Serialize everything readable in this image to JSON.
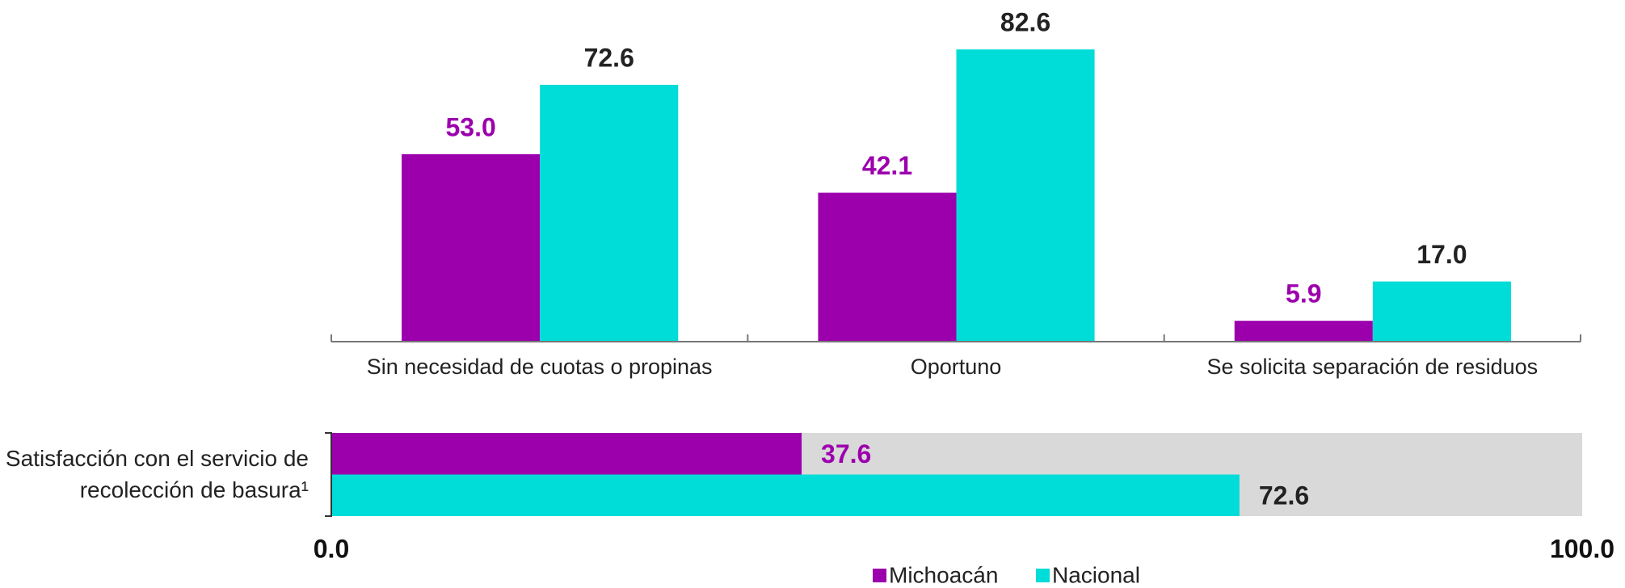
{
  "chart_data": [
    {
      "type": "bar",
      "categories": [
        "Sin necesidad de cuotas o propinas",
        "Oportuno",
        "Se solicita separación de residuos"
      ],
      "series": [
        {
          "name": "Michoacán",
          "color": "#9c00ad",
          "values": [
            53.0,
            42.1,
            5.9
          ],
          "value_labels": [
            "53.0",
            "42.1",
            "5.9"
          ]
        },
        {
          "name": "Nacional",
          "color": "#00dcd8",
          "values": [
            72.6,
            82.6,
            17.0
          ],
          "value_labels": [
            "72.6",
            "82.6",
            "17.0"
          ]
        }
      ],
      "ylim": [
        0,
        100
      ]
    },
    {
      "type": "hbar",
      "categories": [
        "Satisfacción con el servicio de recolección de basura¹"
      ],
      "series": [
        {
          "name": "Michoacán",
          "color": "#9c00ad",
          "values": [
            37.6
          ],
          "value_labels": [
            "37.6"
          ]
        },
        {
          "name": "Nacional",
          "color": "#00dcd8",
          "values": [
            72.6
          ],
          "value_labels": [
            "72.6"
          ]
        }
      ],
      "xlim": [
        0,
        100
      ],
      "xticks": [
        {
          "value": 0,
          "label": "0.0"
        },
        {
          "value": 100,
          "label": "100.0"
        }
      ],
      "track_color": "#d9d9d9",
      "legend": "bottom"
    }
  ]
}
